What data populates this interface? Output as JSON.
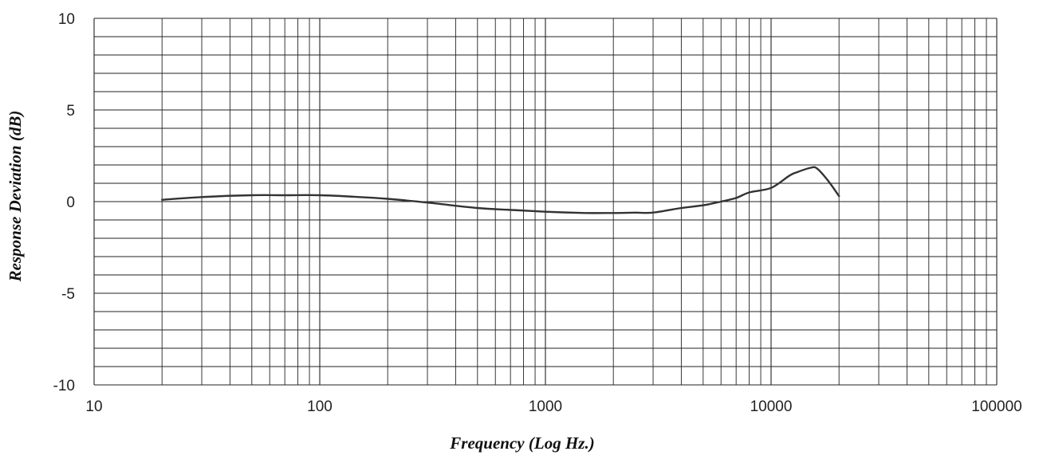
{
  "chart_data": {
    "type": "line",
    "title": "",
    "xlabel": "Frequency (Log Hz.)",
    "ylabel": "Response Deviation (dB)",
    "x_scale": "log",
    "xlim": [
      10,
      100000
    ],
    "ylim": [
      -10,
      10
    ],
    "x_ticks": [
      {
        "value": 10,
        "label": "10"
      },
      {
        "value": 100,
        "label": "100"
      },
      {
        "value": 1000,
        "label": "1000"
      },
      {
        "value": 10000,
        "label": "10000"
      },
      {
        "value": 100000,
        "label": "100000"
      }
    ],
    "y_ticks": [
      {
        "value": 10,
        "label": "10"
      },
      {
        "value": 5,
        "label": "5"
      },
      {
        "value": 0,
        "label": "0"
      },
      {
        "value": -5,
        "label": "-5"
      },
      {
        "value": -10,
        "label": "-10"
      }
    ],
    "y_minor_step": 1,
    "grid": true,
    "line_color": "#333333",
    "grid_color": "#222222",
    "series": [
      {
        "x": [
          20,
          30,
          50,
          70,
          100,
          150,
          200,
          300,
          500,
          700,
          1000,
          1500,
          2000,
          2500,
          3000,
          4000,
          5000,
          6000,
          7000,
          8000,
          10000,
          12000,
          13000,
          15000,
          16000,
          18000,
          20000
        ],
        "y": [
          0.1,
          0.25,
          0.35,
          0.35,
          0.35,
          0.25,
          0.15,
          -0.05,
          -0.35,
          -0.45,
          -0.55,
          -0.62,
          -0.62,
          -0.6,
          -0.6,
          -0.35,
          -0.2,
          0.0,
          0.2,
          0.5,
          0.75,
          1.4,
          1.6,
          1.85,
          1.8,
          1.1,
          0.3
        ]
      }
    ]
  }
}
